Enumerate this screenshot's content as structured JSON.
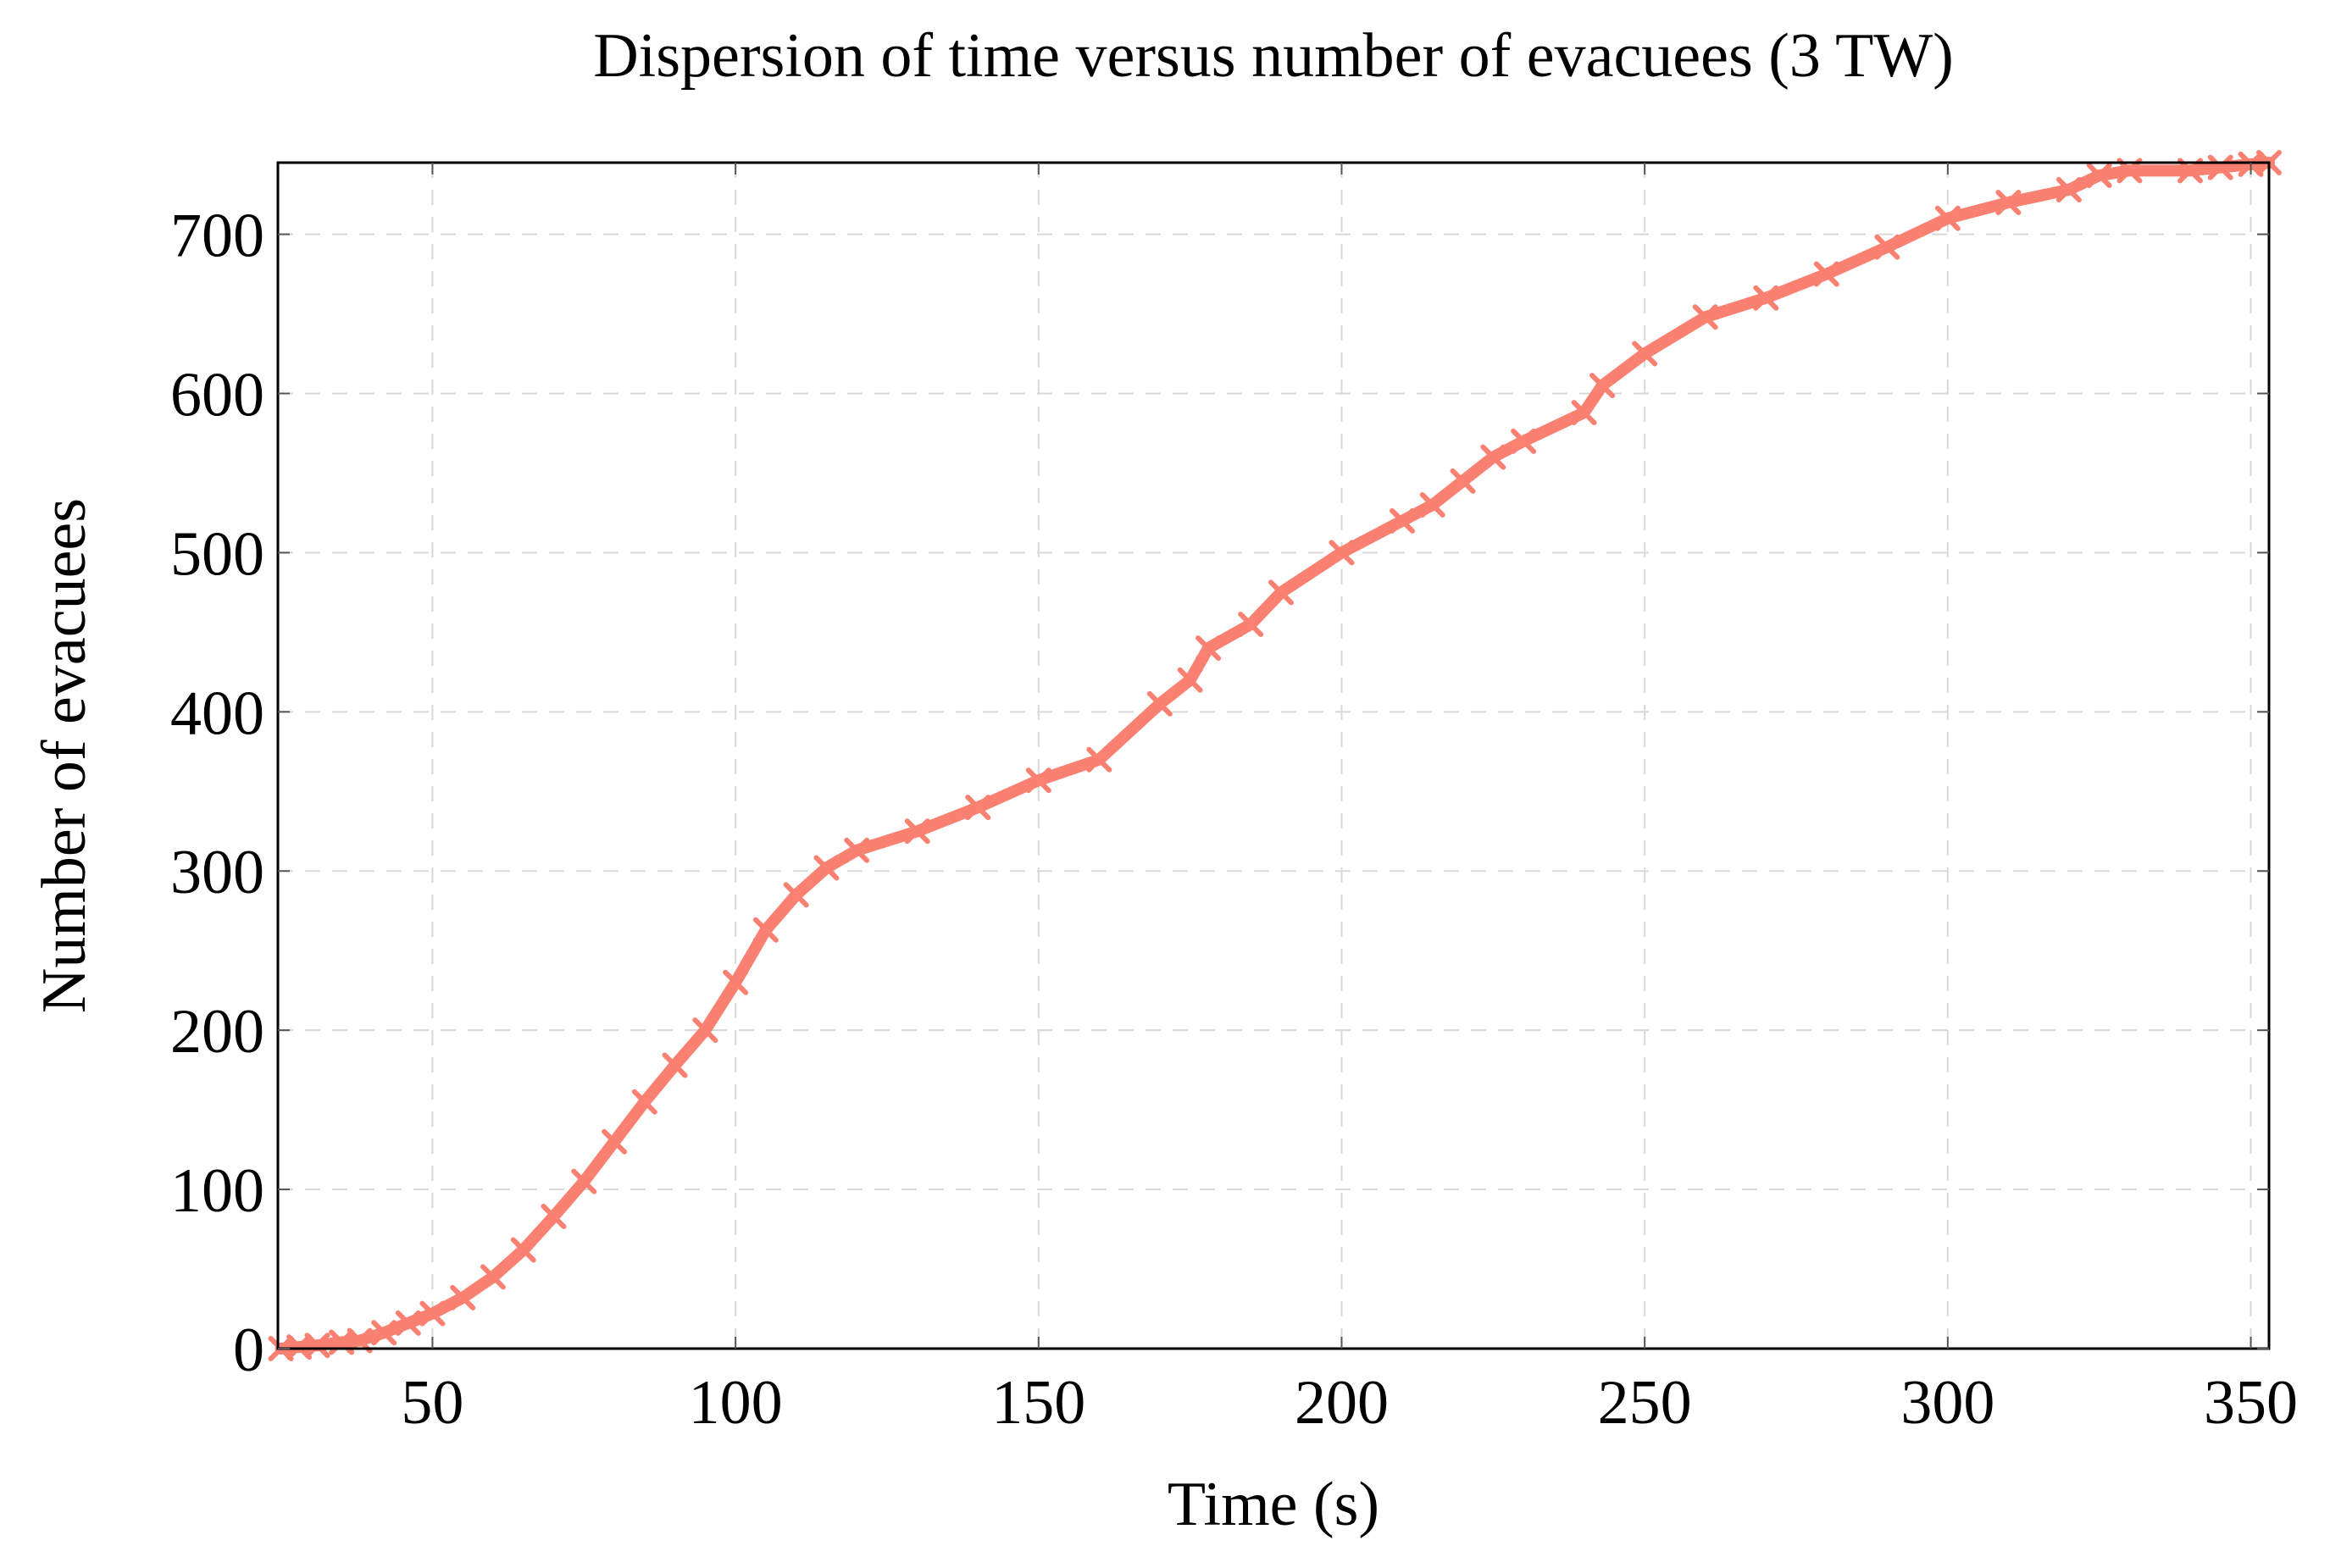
{
  "chart_data": {
    "type": "line",
    "title": "Dispersion of time versus number of evacuees (3 TW)",
    "xlabel": "Time (s)",
    "ylabel": "Number of evacuees",
    "xlim": [
      24.5,
      353
    ],
    "ylim": [
      0,
      745
    ],
    "xticks": [
      50,
      100,
      150,
      200,
      250,
      300,
      350
    ],
    "yticks": [
      0,
      100,
      200,
      300,
      400,
      500,
      600,
      700
    ],
    "grid": true,
    "series": [
      {
        "name": "3 TW",
        "color": "#fa8072",
        "marker": "x",
        "x": [
          25,
          28,
          31,
          35,
          38,
          42,
          46,
          50,
          55,
          60,
          65,
          70,
          75,
          80,
          85,
          90,
          95,
          100,
          105,
          110,
          115,
          120,
          130,
          140,
          150,
          160,
          170,
          175,
          178,
          185,
          190,
          200,
          210,
          215,
          220,
          225,
          230,
          240,
          243,
          250,
          260,
          270,
          280,
          290,
          300,
          310,
          320,
          325,
          330,
          340,
          345,
          350,
          353
        ],
        "y": [
          0,
          1,
          2,
          4,
          5,
          10,
          16,
          22,
          32,
          45,
          62,
          83,
          105,
          130,
          155,
          178,
          200,
          230,
          263,
          285,
          302,
          313,
          325,
          340,
          357,
          370,
          405,
          420,
          440,
          455,
          475,
          500,
          520,
          530,
          545,
          560,
          570,
          588,
          605,
          625,
          648,
          660,
          675,
          692,
          710,
          720,
          728,
          737,
          740,
          740,
          742,
          744,
          745
        ]
      }
    ]
  }
}
